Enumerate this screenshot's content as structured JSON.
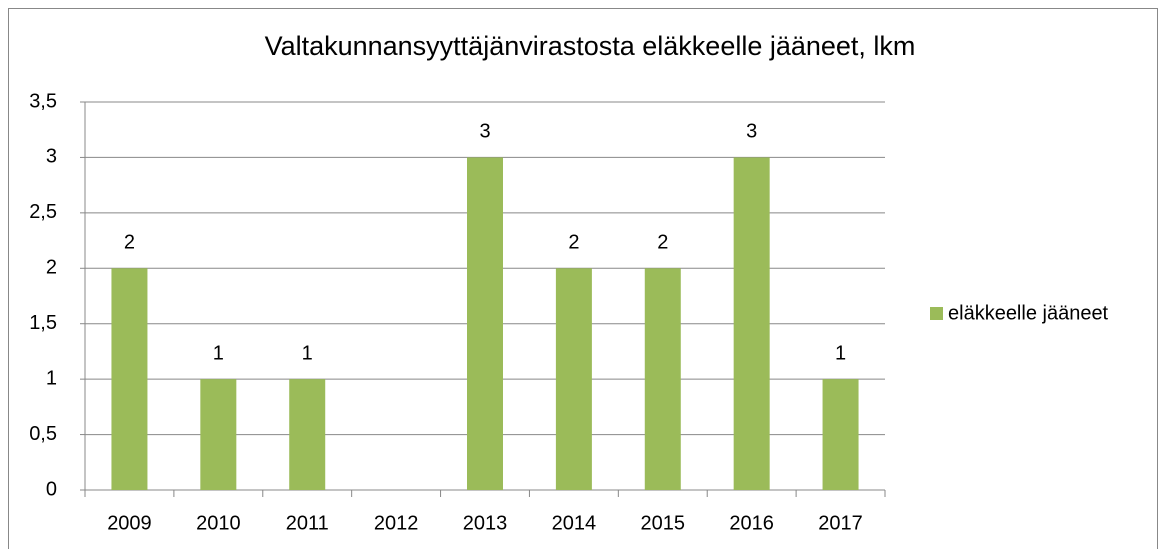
{
  "chart_data": {
    "type": "bar",
    "title": "Valtakunnansyyttäjänvirastosta eläkkeelle jääneet, lkm",
    "categories": [
      "2009",
      "2010",
      "2011",
      "2012",
      "2013",
      "2014",
      "2015",
      "2016",
      "2017"
    ],
    "series": [
      {
        "name": "eläkkeelle jääneet",
        "color": "#9bbb59",
        "values": [
          2,
          1,
          1,
          null,
          3,
          2,
          2,
          3,
          1
        ]
      }
    ],
    "ylim": [
      0,
      3.5
    ],
    "yticks": [
      0,
      {
        "value": 0.5,
        "label": "0,5"
      },
      1,
      {
        "value": 1.5,
        "label": "1,5"
      },
      2,
      {
        "value": 2.5,
        "label": "2,5"
      },
      3,
      {
        "value": 3.5,
        "label": "3,5"
      }
    ],
    "grid": true,
    "legend": "right"
  }
}
